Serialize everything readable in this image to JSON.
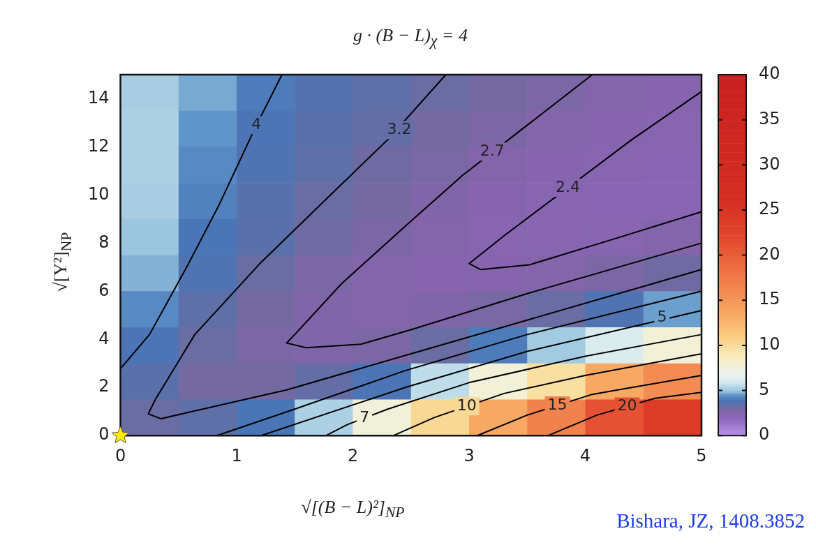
{
  "chart_data": {
    "type": "heatmap",
    "title": "g · (B − L)$_{χ}$ = 4",
    "xlabel": "√[(B − L)²]$_{NP}$",
    "ylabel": "√[Y²]$_{NP}$",
    "clim": [
      0,
      40
    ],
    "cticks": [
      0,
      5,
      10,
      15,
      20,
      25,
      30,
      35,
      40
    ],
    "xlim": [
      0,
      5
    ],
    "ylim": [
      0,
      15
    ],
    "xticks": [
      0,
      1,
      2,
      3,
      4,
      5
    ],
    "yticks": [
      0,
      2,
      4,
      6,
      8,
      10,
      12,
      14
    ],
    "x": [
      0.25,
      0.75,
      1.25,
      1.75,
      2.25,
      2.75,
      3.25,
      3.75,
      4.25,
      4.75
    ],
    "cells": [
      [
        5.2,
        4.7,
        4.1,
        3.7,
        3.4,
        3.2,
        3.0,
        2.8,
        2.6,
        2.5
      ],
      [
        5.3,
        4.5,
        3.9,
        3.5,
        3.3,
        3.0,
        2.8,
        2.6,
        2.5,
        2.4
      ],
      [
        5.3,
        4.3,
        3.8,
        3.4,
        3.1,
        2.9,
        2.6,
        2.5,
        2.4,
        2.3
      ],
      [
        5.2,
        4.2,
        3.6,
        3.2,
        3.0,
        2.7,
        2.5,
        2.4,
        2.3,
        2.3
      ],
      [
        5.0,
        4.0,
        3.5,
        3.1,
        2.8,
        2.6,
        2.4,
        2.4,
        2.4,
        2.6
      ],
      [
        4.8,
        3.8,
        3.2,
        2.8,
        2.6,
        2.5,
        2.5,
        2.6,
        2.8,
        3.1
      ],
      [
        4.3,
        3.4,
        3.0,
        2.7,
        2.6,
        2.7,
        2.9,
        3.2,
        3.8,
        4.6
      ],
      [
        3.9,
        3.2,
        2.8,
        2.7,
        2.8,
        3.2,
        4.1,
        5.1,
        6.2,
        7.8
      ],
      [
        3.5,
        3.0,
        3.0,
        3.3,
        3.9,
        5.6,
        7.8,
        9.8,
        13.5,
        16
      ],
      [
        3.2,
        3.4,
        4.0,
        5.3,
        7.6,
        10.3,
        13.5,
        16.8,
        21,
        24
      ]
    ],
    "series": [
      {
        "type": "line",
        "color": "#000000",
        "x": [
          0,
          0.25,
          0.57,
          0.85,
          1.17,
          1.39
        ],
        "values": [
          2.78,
          4.2,
          7.0,
          9.6,
          12.9,
          15
        ]
      },
      {
        "type": "line",
        "color": "#000000",
        "x": [
          2.8,
          2.3,
          1.85,
          1.21,
          0.64,
          0.3,
          0.24,
          0.35,
          0.57,
          1.43,
          2.5,
          3.5,
          5
        ],
        "values": [
          15,
          12.3,
          10.2,
          7.2,
          4.2,
          1.5,
          0.9,
          0.7,
          0.95,
          1.9,
          3.4,
          4.8,
          6.9
        ]
      },
      {
        "type": "line",
        "color": "#000000",
        "x": [
          4.06,
          2.94,
          2.45,
          1.9,
          1.5,
          1.43,
          1.6,
          2.07,
          2.5,
          3.5,
          5
        ],
        "values": [
          15,
          10.8,
          8.7,
          6.3,
          4.2,
          3.85,
          3.65,
          3.8,
          4.4,
          5.9,
          8.0
        ]
      },
      {
        "type": "line",
        "color": "#000000",
        "x": [
          5,
          4.4,
          3.3,
          3.0,
          3.1,
          3.52,
          4.2,
          5
        ],
        "values": [
          14.3,
          12.3,
          8.3,
          7.15,
          6.9,
          7.1,
          8.1,
          9.3
        ]
      },
      {
        "type": "line",
        "color": "#000000",
        "x": [
          0.83,
          1.5,
          2.45,
          3.5,
          5
        ],
        "values": [
          0,
          1.1,
          2.7,
          4.2,
          6.0
        ]
      },
      {
        "type": "line",
        "color": "#000000",
        "x": [
          1.21,
          2.45,
          3.5,
          5
        ],
        "values": [
          0,
          2.0,
          3.5,
          5.2
        ]
      },
      {
        "type": "line",
        "color": "#000000",
        "x": [
          1.77,
          1.95,
          2.3,
          3,
          4,
          5
        ],
        "values": [
          0,
          0.45,
          1.1,
          2.2,
          3.3,
          4.2
        ]
      },
      {
        "type": "line",
        "color": "#000000",
        "x": [
          2.35,
          2.7,
          3.3,
          4,
          5
        ],
        "values": [
          0,
          0.75,
          1.75,
          2.5,
          3.4
        ]
      },
      {
        "type": "line",
        "color": "#000000",
        "x": [
          3.07,
          3.5,
          4.05,
          4.4,
          5
        ],
        "values": [
          0,
          0.85,
          1.7,
          2.0,
          2.5
        ]
      },
      {
        "type": "line",
        "color": "#000000",
        "x": [
          3.68,
          4.1,
          4.6,
          5
        ],
        "values": [
          0,
          0.85,
          1.55,
          1.8
        ]
      },
      {
        "type": "scatter",
        "color": "#ffee00",
        "marker": "star",
        "x": [
          0
        ],
        "values": [
          0
        ]
      }
    ],
    "annotations": [
      {
        "text": "4",
        "x": 1.17,
        "y": 12.9
      },
      {
        "text": "3.2",
        "x": 2.4,
        "y": 12.7
      },
      {
        "text": "2.7",
        "x": 3.2,
        "y": 11.8
      },
      {
        "text": "2.4",
        "x": 3.85,
        "y": 10.3
      },
      {
        "text": "5",
        "x": 4.66,
        "y": 4.9
      },
      {
        "text": "7",
        "x": 2.1,
        "y": 0.73
      },
      {
        "text": "10",
        "x": 2.98,
        "y": 1.22
      },
      {
        "text": "15",
        "x": 3.76,
        "y": 1.25
      },
      {
        "text": "20",
        "x": 4.36,
        "y": 1.21
      },
      "Bishara, JZ, 1408.3852"
    ]
  }
}
